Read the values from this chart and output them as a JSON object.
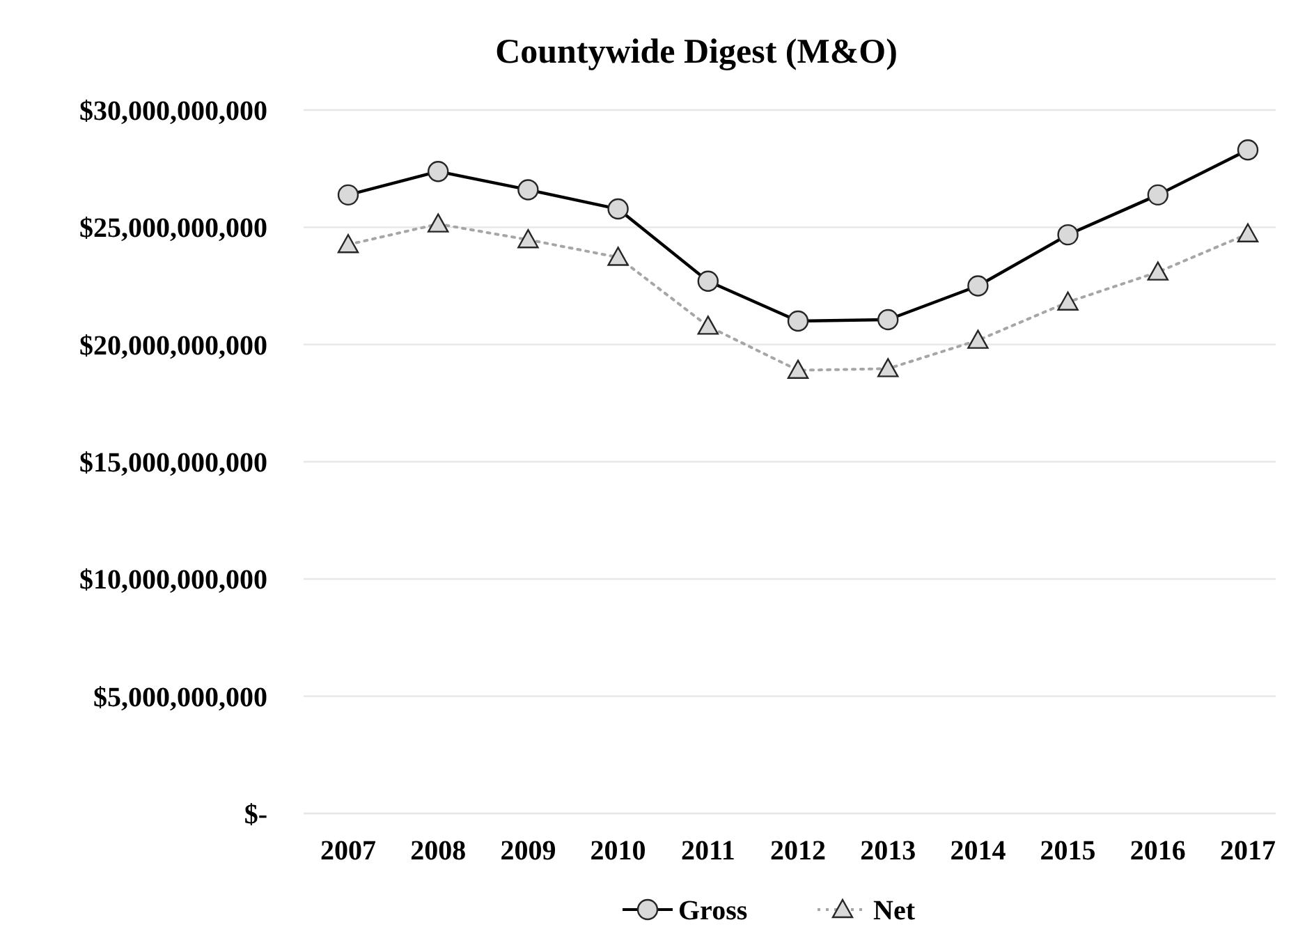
{
  "chart_data": {
    "type": "line",
    "title": "Countywide Digest (M&O)",
    "categories": [
      "2007",
      "2008",
      "2009",
      "2010",
      "2011",
      "2012",
      "2013",
      "2014",
      "2015",
      "2016",
      "2017"
    ],
    "series": [
      {
        "name": "Gross",
        "color": "#000000",
        "marker": "circle",
        "line_style": "solid",
        "values": [
          26380000000,
          27380000000,
          26600000000,
          25780000000,
          22700000000,
          21000000000,
          21060000000,
          22500000000,
          24680000000,
          26380000000,
          28300000000
        ]
      },
      {
        "name": "Net",
        "color": "#a6a6a6",
        "marker": "triangle",
        "line_style": "dotted",
        "values": [
          24260000000,
          25140000000,
          24470000000,
          23720000000,
          20780000000,
          18900000000,
          18970000000,
          20180000000,
          21810000000,
          23090000000,
          24720000000
        ]
      }
    ],
    "ylim": [
      0,
      30000000000
    ],
    "yticks": [
      {
        "value": 0,
        "label": "$-"
      },
      {
        "value": 5000000000,
        "label": "$5,000,000,000"
      },
      {
        "value": 10000000000,
        "label": "$10,000,000,000"
      },
      {
        "value": 15000000000,
        "label": "$15,000,000,000"
      },
      {
        "value": 20000000000,
        "label": "$20,000,000,000"
      },
      {
        "value": 25000000000,
        "label": "$25,000,000,000"
      },
      {
        "value": 30000000000,
        "label": "$30,000,000,000"
      }
    ],
    "grid": "y",
    "legend": "bottom"
  }
}
